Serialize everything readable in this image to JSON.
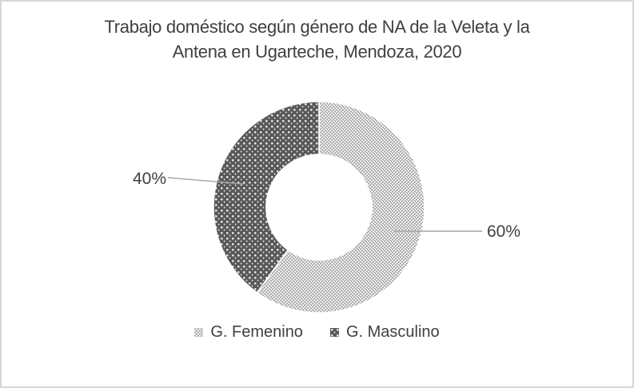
{
  "frame": {
    "background": "#ffffff",
    "border_color": "#d6d6d6"
  },
  "chart_data": {
    "type": "pie",
    "subtype": "donut",
    "title": "Trabajo doméstico según género de NA de la Veleta y la Antena en Ugarteche, Mendoza, 2020",
    "title_lines": [
      "Trabajo doméstico según género de NA de la Veleta y la",
      "Antena en Ugarteche, Mendoza, 2020"
    ],
    "slices": [
      {
        "name": "G. Femenino",
        "value": 60,
        "label": "60%",
        "pattern": "small-dark-dots-on-white"
      },
      {
        "name": "G. Masculino",
        "value": 40,
        "label": "40%",
        "pattern": "white-dots-on-dark-gray"
      }
    ],
    "start_angle_deg": 0,
    "direction": "clockwise",
    "donut_hole_ratio": 0.5,
    "legend_position": "bottom",
    "grid": false,
    "colors": {
      "femenino_pattern_dots": "#6a6a6a",
      "masculino_pattern_bg": "#595959",
      "masculino_pattern_dots": "#ffffff",
      "slice_separator": "#ffffff",
      "leader_line": "#a6a6a6",
      "text": "#404040"
    }
  }
}
